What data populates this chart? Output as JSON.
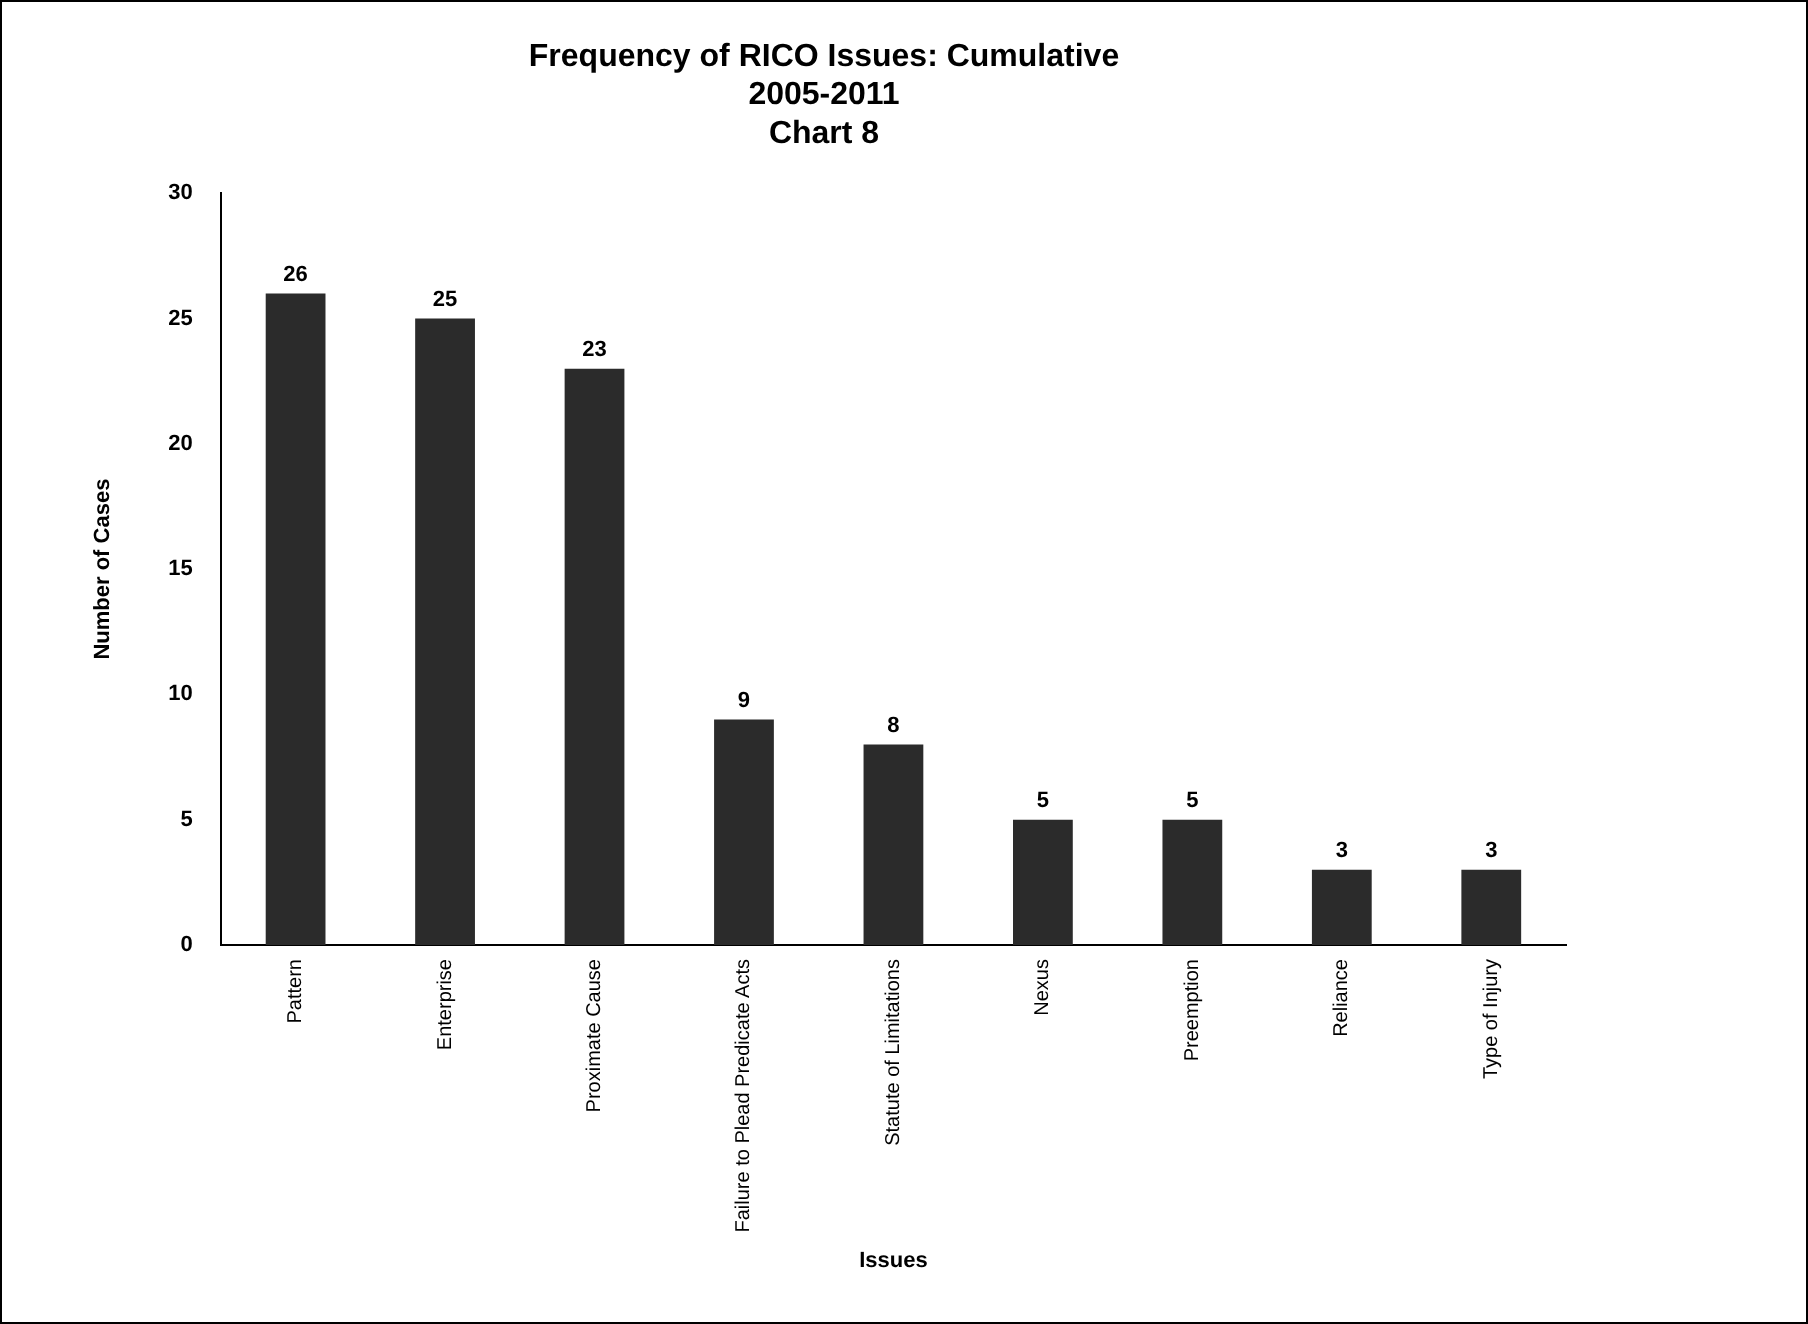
{
  "chart_data": {
    "type": "bar",
    "title": "Frequency of RICO Issues: Cumulative",
    "subtitle": "2005-2011\nChart 8",
    "xlabel": "Issues",
    "ylabel": "Number of Cases",
    "categories": [
      "Pattern",
      "Enterprise",
      "Proximate Cause",
      "Failure to Plead Predicate Acts",
      "Statute of Limitations",
      "Nexus",
      "Preemption",
      "Reliance",
      "Type of Injury"
    ],
    "values": [
      26,
      25,
      23,
      9,
      8,
      5,
      5,
      3,
      3
    ],
    "color": "#2b2b2b",
    "ylim": [
      0,
      30
    ],
    "yticks": [
      0,
      5,
      10,
      15,
      20,
      25,
      30
    ],
    "grid": false,
    "legend": false,
    "data_labels": true
  }
}
